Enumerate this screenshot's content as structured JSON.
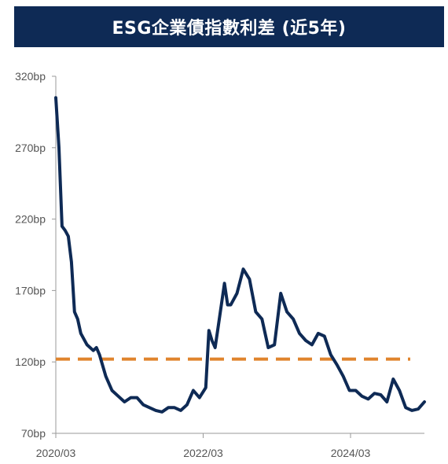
{
  "chart_data": {
    "type": "line",
    "title": "ESG企業債指數利差 (近5年)",
    "xlabel": "",
    "ylabel": "",
    "x_tick_labels": [
      "2020/03",
      "2022/03",
      "2024/03"
    ],
    "y_tick_labels": [
      "70bp",
      "120bp",
      "170bp",
      "220bp",
      "270bp",
      "320bp"
    ],
    "y_ticks": [
      70,
      120,
      170,
      220,
      270,
      320
    ],
    "ylim": [
      70,
      320
    ],
    "xlim": [
      "2020-03",
      "2025-02"
    ],
    "grid": false,
    "series": [
      {
        "color": "#0e2a55",
        "x": [
          "2020-03",
          "2020-03",
          "2020-04",
          "2020-04",
          "2020-05",
          "2020-05",
          "2020-06",
          "2020-06",
          "2020-07",
          "2020-08",
          "2020-09",
          "2020-09",
          "2020-10",
          "2020-11",
          "2020-12",
          "2021-01",
          "2021-02",
          "2021-03",
          "2021-04",
          "2021-05",
          "2021-06",
          "2021-07",
          "2021-08",
          "2021-09",
          "2021-10",
          "2021-11",
          "2021-12",
          "2022-01",
          "2022-02",
          "2022-03",
          "2022-03",
          "2022-04",
          "2022-04",
          "2022-05",
          "2022-06",
          "2022-06",
          "2022-07",
          "2022-08",
          "2022-09",
          "2022-10",
          "2022-11",
          "2022-12",
          "2022-12",
          "2023-01",
          "2023-02",
          "2023-03",
          "2023-04",
          "2023-05",
          "2023-06",
          "2023-07",
          "2023-08",
          "2023-09",
          "2023-10",
          "2023-11",
          "2023-12",
          "2024-01",
          "2024-02",
          "2024-03",
          "2024-04",
          "2024-05",
          "2024-06",
          "2024-07",
          "2024-08",
          "2024-09",
          "2024-10",
          "2024-11",
          "2024-12",
          "2025-01",
          "2025-02"
        ],
        "values": [
          305,
          270,
          215,
          212,
          208,
          190,
          155,
          150,
          140,
          132,
          128,
          130,
          125,
          110,
          100,
          96,
          92,
          95,
          95,
          90,
          88,
          86,
          85,
          88,
          88,
          86,
          90,
          100,
          95,
          102,
          142,
          135,
          130,
          145,
          175,
          160,
          160,
          168,
          185,
          178,
          155,
          150,
          140,
          130,
          132,
          168,
          155,
          150,
          140,
          135,
          132,
          140,
          138,
          125,
          118,
          110,
          100,
          100,
          96,
          94,
          98,
          97,
          92,
          108,
          100,
          88,
          86,
          87,
          92
        ]
      }
    ],
    "reference_line": {
      "value": 122,
      "color": "#e0842c",
      "style": "dashed"
    }
  }
}
